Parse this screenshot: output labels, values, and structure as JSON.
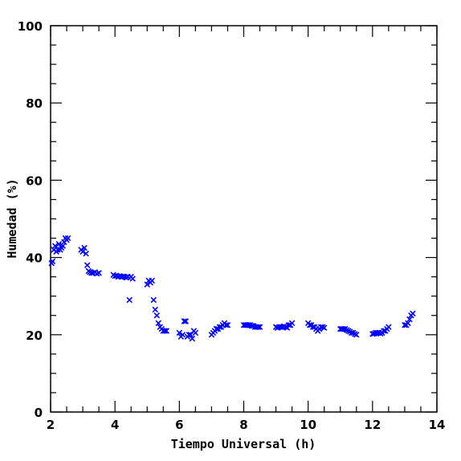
{
  "chart_data": {
    "type": "scatter",
    "title": "",
    "xlabel": "Tiempo Universal (h)",
    "ylabel": "Humedad (%)",
    "xlim": [
      2,
      14
    ],
    "ylim": [
      0,
      100
    ],
    "xticks": [
      2,
      4,
      6,
      8,
      10,
      12,
      14
    ],
    "yticks": [
      0,
      20,
      40,
      60,
      80,
      100
    ],
    "x_minor_step": 0.5,
    "y_minor_step": 5,
    "grid": false,
    "legend": "none",
    "marker": "x",
    "color": "#0000ff",
    "series": [
      {
        "x": [
          2.03,
          2.06,
          2.1,
          2.14,
          2.18,
          2.22,
          2.26,
          2.3,
          2.34,
          2.38,
          2.42,
          2.46,
          2.5,
          2.54,
          2.95,
          3.0,
          3.05,
          3.1,
          3.14,
          3.18,
          3.22,
          3.27,
          3.32,
          3.38,
          3.44,
          3.5,
          3.95,
          4.0,
          4.05,
          4.1,
          4.15,
          4.2,
          4.25,
          4.3,
          4.35,
          4.4,
          4.45,
          4.5,
          4.55,
          5.0,
          5.05,
          5.1,
          5.15,
          5.2,
          5.25,
          5.3,
          5.35,
          5.4,
          5.45,
          5.5,
          5.55,
          5.6,
          6.0,
          6.05,
          6.1,
          6.15,
          6.2,
          6.25,
          6.3,
          6.35,
          6.4,
          6.45,
          6.5,
          7.0,
          7.05,
          7.1,
          7.15,
          7.2,
          7.25,
          7.3,
          7.35,
          7.4,
          7.45,
          7.5,
          8.0,
          8.05,
          8.1,
          8.15,
          8.2,
          8.25,
          8.3,
          8.35,
          8.4,
          8.45,
          8.5,
          9.0,
          9.05,
          9.1,
          9.15,
          9.2,
          9.25,
          9.3,
          9.35,
          9.4,
          9.45,
          9.5,
          10.0,
          10.05,
          10.1,
          10.15,
          10.2,
          10.25,
          10.3,
          10.35,
          10.4,
          10.45,
          10.5,
          11.0,
          11.05,
          11.1,
          11.15,
          11.2,
          11.25,
          11.3,
          11.35,
          11.4,
          11.45,
          11.5,
          12.0,
          12.05,
          12.1,
          12.15,
          12.2,
          12.25,
          12.3,
          12.35,
          12.4,
          12.45,
          12.5,
          13.0,
          13.05,
          13.1,
          13.15,
          13.2,
          13.25
        ],
        "y": [
          38.5,
          39,
          42,
          43,
          41.5,
          42,
          43.5,
          42,
          42.5,
          43,
          44,
          45,
          44.5,
          45,
          42,
          41.5,
          42.5,
          41,
          38,
          36.5,
          36.2,
          36,
          36,
          36.2,
          35.8,
          36,
          35.5,
          35.2,
          35.3,
          35,
          35.2,
          35,
          35.1,
          35,
          34.8,
          35,
          29,
          35,
          34.5,
          33,
          34,
          33.5,
          34,
          29,
          26.5,
          25,
          23,
          22,
          21.5,
          21,
          21,
          21,
          20.5,
          19.5,
          20,
          23.5,
          23.5,
          19.5,
          20,
          20,
          19,
          21,
          20.5,
          20,
          20.5,
          21,
          21.5,
          21.5,
          22,
          22,
          22.5,
          23,
          22.5,
          22.5,
          22.5,
          22.5,
          22.5,
          22.5,
          22.5,
          22.3,
          22.3,
          22,
          22,
          22,
          22,
          22,
          21.8,
          22,
          22,
          22,
          22.2,
          22,
          21.8,
          22.5,
          22.5,
          23,
          23,
          22.5,
          22.5,
          22,
          22,
          21.5,
          21,
          21.5,
          22,
          22,
          21.8,
          21.5,
          21.5,
          21.5,
          21.5,
          21.2,
          21,
          20.8,
          20.5,
          20.5,
          20.2,
          20,
          20.2,
          20.3,
          20.5,
          20.5,
          20.5,
          20.3,
          20.5,
          21,
          21,
          21.5,
          22,
          22.5,
          22.5,
          23,
          24,
          25,
          25.5
        ]
      }
    ]
  }
}
